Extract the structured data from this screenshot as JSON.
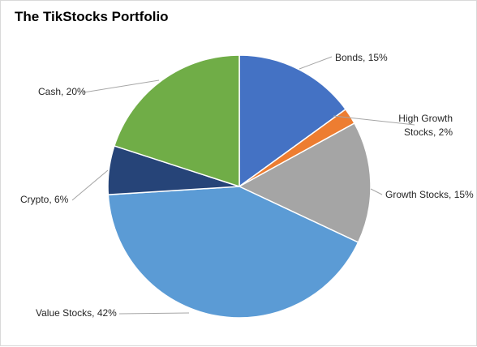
{
  "chart_data": {
    "type": "pie",
    "title": "The TikStocks Portfolio",
    "slices": [
      {
        "label": "Bonds, 15%",
        "lines": [
          "Bonds, 15%"
        ],
        "value": 15,
        "color": "#4472C4"
      },
      {
        "label": "High Growth Stocks, 2%",
        "lines": [
          "High Growth",
          "Stocks, 2%"
        ],
        "value": 2,
        "color": "#ED7D31"
      },
      {
        "label": "Growth Stocks, 15%",
        "lines": [
          "Growth Stocks, 15%"
        ],
        "value": 15,
        "color": "#A5A5A5"
      },
      {
        "label": "Value Stocks, 42%",
        "lines": [
          "Value Stocks, 42%"
        ],
        "value": 42,
        "color": "#5B9BD5"
      },
      {
        "label": "Crypto, 6%",
        "lines": [
          "Crypto, 6%"
        ],
        "value": 6,
        "color": "#264478"
      },
      {
        "label": "Cash, 20%",
        "lines": [
          "Cash, 20%"
        ],
        "value": 20,
        "color": "#70AD47"
      }
    ],
    "start": "12 o'clock, clockwise",
    "legend": "none (data labels with leader lines)"
  }
}
